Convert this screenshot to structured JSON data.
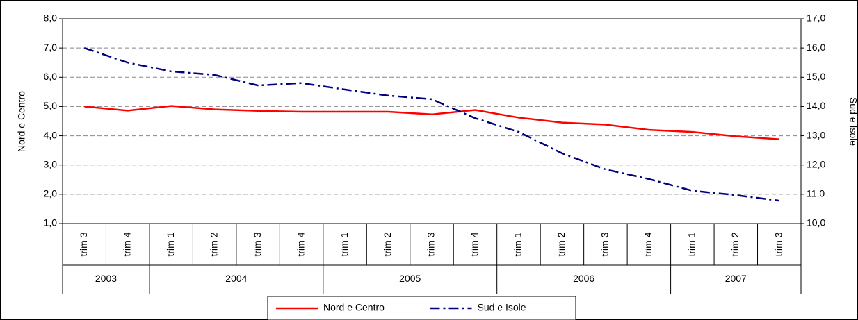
{
  "chart_data": {
    "type": "line",
    "categories": [
      "trim 3",
      "trim 4",
      "trim 1",
      "trim 2",
      "trim 3",
      "trim 4",
      "trim 1",
      "trim 2",
      "trim 3",
      "trim 4",
      "trim 1",
      "trim 2",
      "trim 3",
      "trim 4",
      "trim 1",
      "trim 2",
      "trim 3"
    ],
    "groups": [
      {
        "label": "2003",
        "count": 2
      },
      {
        "label": "2004",
        "count": 4
      },
      {
        "label": "2005",
        "count": 4
      },
      {
        "label": "2006",
        "count": 4
      },
      {
        "label": "2007",
        "count": 3
      }
    ],
    "ylabel": "Nord e Centro",
    "y2label": "Sud e Isole",
    "ylim": [
      1,
      8
    ],
    "yticks": [
      {
        "value": 1,
        "label": "1,0"
      },
      {
        "value": 2,
        "label": "2,0"
      },
      {
        "value": 3,
        "label": "3,0"
      },
      {
        "value": 4,
        "label": "4,0"
      },
      {
        "value": 5,
        "label": "5,0"
      },
      {
        "value": 6,
        "label": "6,0"
      },
      {
        "value": 7,
        "label": "7,0"
      },
      {
        "value": 8,
        "label": "8,0"
      }
    ],
    "y2lim": [
      10,
      17
    ],
    "y2ticks": [
      {
        "value": 10,
        "label": "10,0"
      },
      {
        "value": 11,
        "label": "11,0"
      },
      {
        "value": 12,
        "label": "12,0"
      },
      {
        "value": 13,
        "label": "13,0"
      },
      {
        "value": 14,
        "label": "14,0"
      },
      {
        "value": 15,
        "label": "15,0"
      },
      {
        "value": 16,
        "label": "16,0"
      },
      {
        "value": 17,
        "label": "17,0"
      }
    ],
    "grid": true,
    "legend": "bottom",
    "series": [
      {
        "name": "Nord e Centro",
        "color": "#ff0000",
        "dash": "solid",
        "values": [
          5.0,
          4.86,
          5.02,
          4.9,
          4.85,
          4.82,
          4.82,
          4.82,
          4.73,
          4.88,
          4.62,
          4.45,
          4.38,
          4.2,
          4.13,
          3.98,
          3.88
        ]
      },
      {
        "name": "Sud e Isole",
        "color": "#000080",
        "dash": "dashdot",
        "axis": "y2",
        "values": [
          16.0,
          15.5,
          15.2,
          15.08,
          14.72,
          14.8,
          14.58,
          14.37,
          14.25,
          13.6,
          13.13,
          12.4,
          11.85,
          11.52,
          11.12,
          10.97,
          10.78
        ]
      }
    ]
  }
}
